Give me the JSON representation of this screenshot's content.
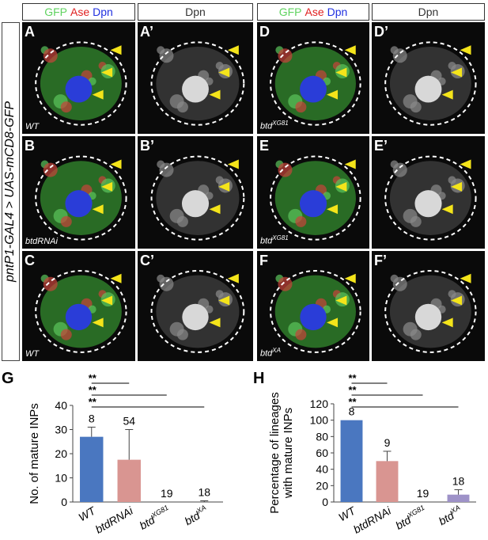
{
  "side_label": "pntP1-GAL4 > UAS-mCD8-GFP",
  "headers": [
    {
      "parts": [
        {
          "t": "GFP",
          "c": "g"
        },
        {
          "t": "Ase",
          "c": "r"
        },
        {
          "t": "Dpn",
          "c": "b"
        }
      ]
    },
    {
      "parts": [
        {
          "t": "Dpn",
          "c": "k"
        }
      ]
    },
    {
      "parts": [
        {
          "t": "GFP",
          "c": "g"
        },
        {
          "t": "Ase",
          "c": "r"
        },
        {
          "t": "Dpn",
          "c": "b"
        }
      ]
    },
    {
      "parts": [
        {
          "t": "Dpn",
          "c": "k"
        }
      ]
    }
  ],
  "panels": [
    {
      "id": "A",
      "label": "A",
      "sub": "WT",
      "sup": "",
      "kind": "color"
    },
    {
      "id": "A2",
      "label": "A’",
      "sub": "",
      "sup": "",
      "kind": "gray"
    },
    {
      "id": "D",
      "label": "D",
      "sub": "btd",
      "sup": "XG81",
      "kind": "color"
    },
    {
      "id": "D2",
      "label": "D’",
      "sub": "",
      "sup": "",
      "kind": "gray"
    },
    {
      "id": "B",
      "label": "B",
      "sub": "btdRNAi",
      "sup": "",
      "kind": "color"
    },
    {
      "id": "B2",
      "label": "B’",
      "sub": "",
      "sup": "",
      "kind": "gray"
    },
    {
      "id": "E",
      "label": "E",
      "sub": "btd",
      "sup": "XG81",
      "kind": "color"
    },
    {
      "id": "E2",
      "label": "E’",
      "sub": "",
      "sup": "",
      "kind": "gray"
    },
    {
      "id": "C",
      "label": "C",
      "sub": "WT",
      "sup": "",
      "kind": "color"
    },
    {
      "id": "C2",
      "label": "C’",
      "sub": "",
      "sup": "",
      "kind": "gray"
    },
    {
      "id": "F",
      "label": "F",
      "sub": "btd",
      "sup": "XA",
      "kind": "color"
    },
    {
      "id": "F2",
      "label": "F’",
      "sub": "",
      "sup": "",
      "kind": "gray"
    }
  ],
  "chart_data": [
    {
      "type": "bar",
      "panel_label": "G",
      "ylabel": "No. of mature INPs",
      "ylim": [
        0,
        40
      ],
      "yticks": [
        0,
        10,
        20,
        30,
        40
      ],
      "categories": [
        "WT",
        "btdRNAi",
        "btdXG81",
        "btdXA"
      ],
      "category_display": [
        {
          "base": "WT",
          "sup": ""
        },
        {
          "base": "btdRNAi",
          "sup": ""
        },
        {
          "base": "btd",
          "sup": "XG81"
        },
        {
          "base": "btd",
          "sup": "XA"
        }
      ],
      "values": [
        27,
        17.5,
        0,
        0
      ],
      "errors": [
        4,
        12.5,
        0,
        0.5
      ],
      "n_labels": [
        "8",
        "54",
        "19",
        "18"
      ],
      "colors": [
        "#4a77c0",
        "#d99591",
        "#9ab85a",
        "#9e92c8"
      ],
      "significance": [
        "**",
        "**",
        "**"
      ]
    },
    {
      "type": "bar",
      "panel_label": "H",
      "ylabel": "Percentage of lineages with mature INPs",
      "ylim": [
        0,
        120
      ],
      "yticks": [
        0,
        20,
        40,
        60,
        80,
        100,
        120
      ],
      "categories": [
        "WT",
        "btdRNAi",
        "btdXG81",
        "btdXA"
      ],
      "category_display": [
        {
          "base": "WT",
          "sup": ""
        },
        {
          "base": "btdRNAi",
          "sup": ""
        },
        {
          "base": "btd",
          "sup": "XG81"
        },
        {
          "base": "btd",
          "sup": "XA"
        }
      ],
      "values": [
        100,
        50,
        0,
        9
      ],
      "errors": [
        0,
        12,
        0,
        6
      ],
      "n_labels": [
        "8",
        "9",
        "19",
        "18"
      ],
      "colors": [
        "#4a77c0",
        "#d99591",
        "#9ab85a",
        "#9e92c8"
      ],
      "significance": [
        "**",
        "**",
        "**"
      ]
    }
  ]
}
